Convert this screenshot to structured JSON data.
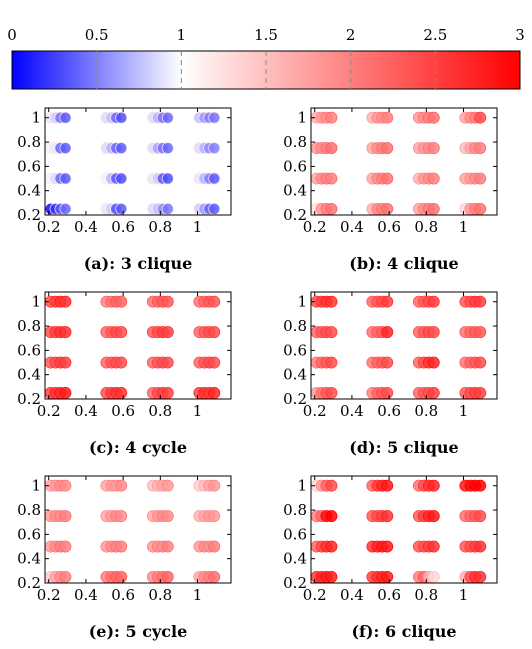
{
  "colorbar": {
    "min": 0,
    "max": 3,
    "tick_labels": [
      "0",
      "0.5",
      "1",
      "1.5",
      "2",
      "2.5",
      "3"
    ],
    "tick_values": [
      0,
      0.5,
      1,
      1.5,
      2,
      2.5,
      3
    ],
    "colormap": [
      "#0000ff",
      "#ffffff",
      "#ff0000"
    ],
    "mid": 1
  },
  "chart_data": [
    {
      "type": "scatter",
      "caption": "(a): 3 clique",
      "xlim": [
        0.18,
        1.18
      ],
      "ylim": [
        0.2,
        1.08
      ],
      "xticks": [
        "0.2",
        "0.4",
        "0.6",
        "0.8",
        "1"
      ],
      "yticks": [
        "0.2",
        "0.4",
        "0.6",
        "0.8",
        "1"
      ],
      "x": [
        0.25,
        0.55,
        0.8,
        1.05
      ],
      "y": [
        0.25,
        0.5,
        0.75,
        1.0
      ],
      "offsets": [
        -0.04,
        -0.013,
        0.013,
        0.04
      ],
      "values": [
        [
          [
            0.05,
            0.2,
            0.35,
            0.4
          ],
          [
            0.9,
            0.8,
            0.3,
            0.35
          ],
          [
            0.85,
            0.75,
            0.55,
            0.45
          ],
          [
            0.8,
            0.6,
            0.4,
            0.35
          ]
        ],
        [
          [
            0.95,
            0.85,
            0.4,
            0.35
          ],
          [
            0.95,
            0.7,
            0.35,
            0.3
          ],
          [
            0.9,
            0.8,
            0.35,
            0.3
          ],
          [
            0.9,
            0.7,
            0.5,
            0.35
          ]
        ],
        [
          [
            0.95,
            0.9,
            0.4,
            0.35
          ],
          [
            0.85,
            0.7,
            0.4,
            0.35
          ],
          [
            0.85,
            0.65,
            0.45,
            0.4
          ],
          [
            0.85,
            0.7,
            0.55,
            0.5
          ]
        ],
        [
          [
            0.9,
            0.8,
            0.45,
            0.35
          ],
          [
            0.85,
            0.75,
            0.4,
            0.3
          ],
          [
            0.85,
            0.7,
            0.45,
            0.4
          ],
          [
            0.75,
            0.6,
            0.5,
            0.45
          ]
        ]
      ]
    },
    {
      "type": "scatter",
      "caption": "(b): 4 clique",
      "xlim": [
        0.18,
        1.18
      ],
      "ylim": [
        0.2,
        1.08
      ],
      "xticks": [
        "0.2",
        "0.4",
        "0.6",
        "0.8",
        "1"
      ],
      "yticks": [
        "0.2",
        "0.4",
        "0.6",
        "0.8",
        "1"
      ],
      "x": [
        0.25,
        0.55,
        0.8,
        1.05
      ],
      "y": [
        0.25,
        0.5,
        0.75,
        1.0
      ],
      "offsets": [
        -0.04,
        -0.013,
        0.013,
        0.04
      ],
      "values": [
        [
          [
            1.2,
            1.8,
            2.0,
            2.1
          ],
          [
            1.6,
            1.9,
            2.0,
            2.1
          ],
          [
            1.7,
            1.9,
            2.0,
            2.1
          ],
          [
            1.3,
            1.8,
            2.0,
            2.1
          ]
        ],
        [
          [
            1.7,
            1.9,
            2.0,
            2.0
          ],
          [
            1.7,
            1.9,
            2.0,
            2.1
          ],
          [
            1.6,
            1.8,
            1.9,
            2.0
          ],
          [
            1.7,
            1.8,
            1.9,
            2.0
          ]
        ],
        [
          [
            1.8,
            1.9,
            2.0,
            2.1
          ],
          [
            1.7,
            1.9,
            2.0,
            2.1
          ],
          [
            1.7,
            1.8,
            1.9,
            2.0
          ],
          [
            1.5,
            1.7,
            1.9,
            2.0
          ]
        ],
        [
          [
            1.6,
            1.8,
            1.9,
            2.0
          ],
          [
            1.6,
            1.8,
            1.9,
            2.0
          ],
          [
            1.8,
            1.9,
            2.0,
            2.1
          ],
          [
            1.7,
            1.9,
            2.0,
            2.4
          ]
        ]
      ]
    },
    {
      "type": "scatter",
      "caption": "(c): 4 cycle",
      "xlim": [
        0.18,
        1.18
      ],
      "ylim": [
        0.2,
        1.08
      ],
      "xticks": [
        "0.2",
        "0.4",
        "0.6",
        "0.8",
        "1"
      ],
      "yticks": [
        "0.2",
        "0.4",
        "0.6",
        "0.8",
        "1"
      ],
      "x": [
        0.25,
        0.55,
        0.8,
        1.05
      ],
      "y": [
        0.25,
        0.5,
        0.75,
        1.0
      ],
      "offsets": [
        -0.04,
        -0.013,
        0.013,
        0.04
      ],
      "values": [
        [
          [
            2.5,
            2.6,
            2.7,
            2.8
          ],
          [
            2.4,
            2.5,
            2.6,
            2.6
          ],
          [
            2.2,
            2.4,
            2.5,
            2.5
          ],
          [
            2.5,
            2.6,
            2.6,
            2.7
          ]
        ],
        [
          [
            2.3,
            2.4,
            2.5,
            2.5
          ],
          [
            2.2,
            2.3,
            2.4,
            2.4
          ],
          [
            2.2,
            2.3,
            2.4,
            2.4
          ],
          [
            2.2,
            2.3,
            2.4,
            2.4
          ]
        ],
        [
          [
            2.4,
            2.5,
            2.6,
            2.6
          ],
          [
            2.2,
            2.3,
            2.4,
            2.4
          ],
          [
            2.3,
            2.4,
            2.5,
            2.5
          ],
          [
            2.2,
            2.3,
            2.4,
            2.4
          ]
        ],
        [
          [
            2.4,
            2.5,
            2.6,
            2.6
          ],
          [
            2.0,
            2.1,
            2.2,
            2.2
          ],
          [
            2.1,
            2.2,
            2.3,
            2.3
          ],
          [
            2.1,
            2.2,
            2.3,
            2.3
          ]
        ]
      ]
    },
    {
      "type": "scatter",
      "caption": "(d): 5 clique",
      "xlim": [
        0.18,
        1.18
      ],
      "ylim": [
        0.2,
        1.08
      ],
      "xticks": [
        "0.2",
        "0.4",
        "0.6",
        "0.8",
        "1"
      ],
      "yticks": [
        "0.2",
        "0.4",
        "0.6",
        "0.8",
        "1"
      ],
      "x": [
        0.25,
        0.55,
        0.8,
        1.05
      ],
      "y": [
        0.25,
        0.5,
        0.75,
        1.0
      ],
      "offsets": [
        -0.04,
        -0.013,
        0.013,
        0.04
      ],
      "values": [
        [
          [
            1.8,
            2.1,
            2.3,
            2.4
          ],
          [
            2.0,
            2.2,
            2.3,
            2.4
          ],
          [
            2.2,
            2.3,
            2.4,
            2.5
          ],
          [
            2.3,
            2.4,
            2.5,
            2.5
          ]
        ],
        [
          [
            2.0,
            2.2,
            2.3,
            2.4
          ],
          [
            2.1,
            2.2,
            2.3,
            2.4
          ],
          [
            2.2,
            2.4,
            2.6,
            2.7
          ],
          [
            2.1,
            2.2,
            2.3,
            2.4
          ]
        ],
        [
          [
            2.2,
            2.3,
            2.4,
            2.4
          ],
          [
            2.1,
            2.2,
            2.3,
            2.7
          ],
          [
            2.2,
            2.3,
            2.4,
            2.4
          ],
          [
            2.1,
            2.2,
            2.3,
            2.3
          ]
        ],
        [
          [
            2.4,
            2.5,
            2.6,
            2.6
          ],
          [
            2.2,
            2.3,
            2.4,
            2.5
          ],
          [
            2.2,
            2.3,
            2.4,
            2.5
          ],
          [
            2.3,
            2.4,
            2.5,
            2.5
          ]
        ]
      ]
    },
    {
      "type": "scatter",
      "caption": "(e): 5 cycle",
      "xlim": [
        0.18,
        1.18
      ],
      "ylim": [
        0.2,
        1.08
      ],
      "xticks": [
        "0.2",
        "0.4",
        "0.6",
        "0.8",
        "1"
      ],
      "yticks": [
        "0.2",
        "0.4",
        "0.6",
        "0.8",
        "1"
      ],
      "x": [
        0.25,
        0.55,
        0.8,
        1.05
      ],
      "y": [
        0.25,
        0.5,
        0.75,
        1.0
      ],
      "offsets": [
        -0.04,
        -0.013,
        0.013,
        0.04
      ],
      "values": [
        [
          [
            1.4,
            1.7,
            1.9,
            2.0
          ],
          [
            2.0,
            2.1,
            2.2,
            2.2
          ],
          [
            1.9,
            2.0,
            2.1,
            2.2
          ],
          [
            1.7,
            1.9,
            2.0,
            2.1
          ]
        ],
        [
          [
            1.8,
            1.9,
            2.0,
            2.0
          ],
          [
            1.8,
            1.9,
            2.0,
            2.0
          ],
          [
            1.8,
            1.9,
            1.9,
            2.0
          ],
          [
            1.8,
            1.9,
            1.9,
            2.0
          ]
        ],
        [
          [
            1.8,
            1.9,
            1.9,
            2.0
          ],
          [
            1.7,
            1.8,
            1.9,
            1.9
          ],
          [
            1.7,
            1.8,
            1.9,
            1.9
          ],
          [
            1.6,
            1.7,
            1.8,
            1.8
          ]
        ],
        [
          [
            1.7,
            1.8,
            1.9,
            1.9
          ],
          [
            1.7,
            1.8,
            1.8,
            1.9
          ],
          [
            1.5,
            1.6,
            1.7,
            1.8
          ],
          [
            1.4,
            1.5,
            1.7,
            1.8
          ]
        ]
      ]
    },
    {
      "type": "scatter",
      "caption": "(f): 6 clique",
      "xlim": [
        0.18,
        1.18
      ],
      "ylim": [
        0.2,
        1.08
      ],
      "xticks": [
        "0.2",
        "0.4",
        "0.6",
        "0.8",
        "1"
      ],
      "yticks": [
        "0.2",
        "0.4",
        "0.6",
        "0.8",
        "1"
      ],
      "x": [
        0.25,
        0.55,
        0.8,
        1.05
      ],
      "y": [
        0.25,
        0.5,
        0.75,
        1.0
      ],
      "offsets": [
        -0.04,
        -0.013,
        0.013,
        0.04
      ],
      "values": [
        [
          [
            2.6,
            2.7,
            2.8,
            2.8
          ],
          [
            2.5,
            2.6,
            2.7,
            2.8
          ],
          [
            2.0,
            2.2,
            1.6,
            1.3
          ],
          [
            1.6,
            2.4,
            2.6,
            2.6
          ]
        ],
        [
          [
            2.2,
            2.4,
            2.6,
            2.7
          ],
          [
            2.6,
            2.7,
            2.8,
            2.8
          ],
          [
            2.3,
            2.4,
            2.5,
            2.6
          ],
          [
            2.3,
            2.4,
            2.5,
            2.6
          ]
        ],
        [
          [
            2.0,
            2.2,
            2.9,
            3.0
          ],
          [
            2.3,
            2.4,
            2.5,
            2.6
          ],
          [
            2.3,
            2.5,
            2.7,
            2.8
          ],
          [
            2.1,
            2.2,
            2.3,
            2.4
          ]
        ],
        [
          [
            1.3,
            1.8,
            2.2,
            2.4
          ],
          [
            2.2,
            2.5,
            2.7,
            2.8
          ],
          [
            2.1,
            2.4,
            2.6,
            2.7
          ],
          [
            2.8,
            2.9,
            3.0,
            3.0
          ]
        ]
      ]
    }
  ]
}
